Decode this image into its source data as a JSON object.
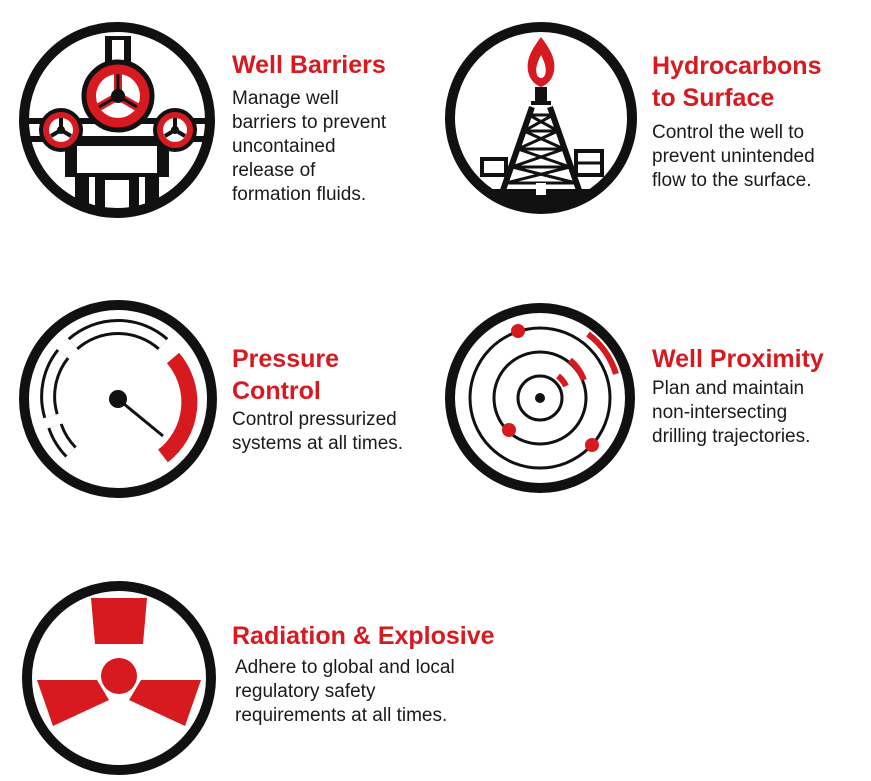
{
  "colors": {
    "accent": "#d71920",
    "ink": "#111111",
    "text": "#1a1a1a",
    "background": "#ffffff"
  },
  "items": [
    {
      "icon": "valve-wheels-icon",
      "title": [
        "Well Barriers"
      ],
      "description": [
        "Manage well",
        "barriers to prevent",
        "uncontained",
        "release of",
        "formation fluids."
      ]
    },
    {
      "icon": "oil-derrick-flame-icon",
      "title": [
        "Hydrocarbons",
        "to Surface"
      ],
      "description": [
        "Control the well to",
        "prevent unintended",
        "flow to the surface."
      ]
    },
    {
      "icon": "pressure-gauge-icon",
      "title": [
        "Pressure",
        "Control"
      ],
      "description": [
        "Control pressurized",
        "systems at all times."
      ]
    },
    {
      "icon": "proximity-radar-icon",
      "title": [
        "Well Proximity"
      ],
      "description": [
        "Plan and maintain",
        "non-intersecting",
        "drilling trajectories."
      ]
    },
    {
      "icon": "radiation-icon",
      "title": [
        "Radiation & Explosive"
      ],
      "description": [
        "Adhere to global and local",
        "regulatory safety",
        "requirements at all times."
      ]
    }
  ]
}
